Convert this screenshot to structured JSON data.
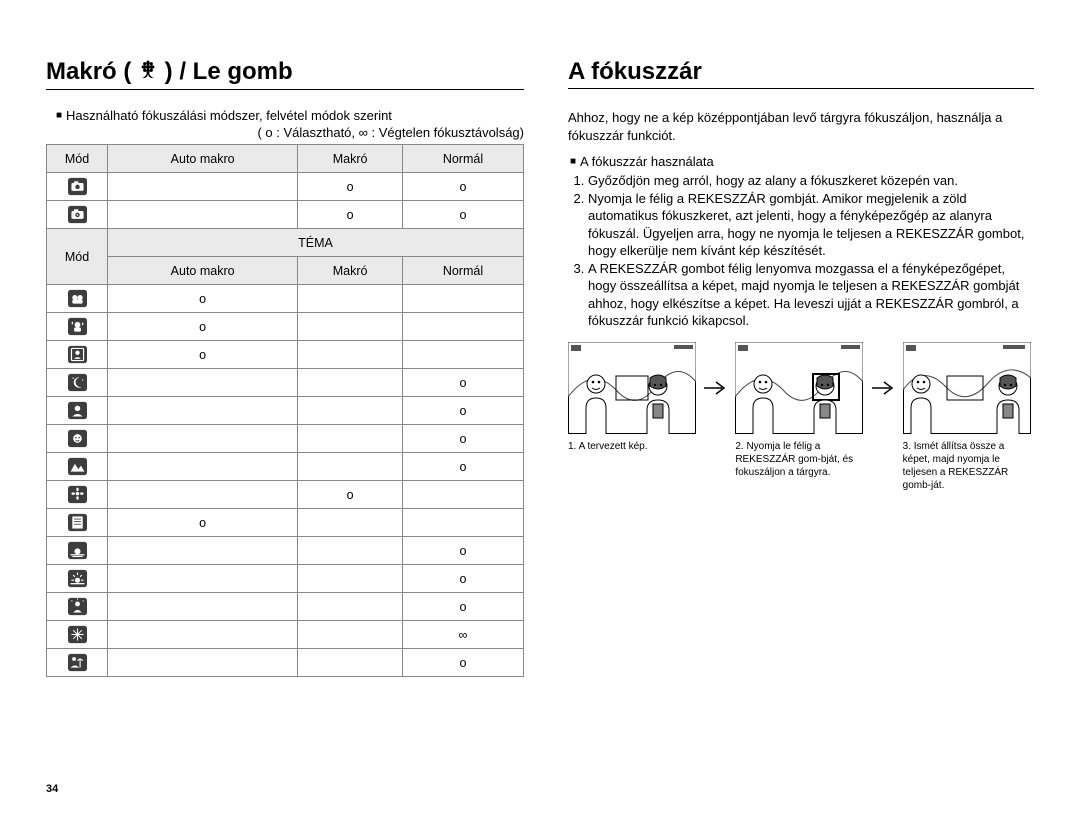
{
  "pageNumber": "34",
  "left": {
    "heading_pre": "Makró ( ",
    "heading_post": " ) / Le gomb",
    "subLine": "Használható fókuszálási módszer, felvétel módok szerint",
    "legend": "( o : Választható, ∞ : Végtelen fókusztávolság)",
    "headers": {
      "mode": "Mód",
      "automacro": "Auto makro",
      "macro": "Makró",
      "normal": "Normál",
      "tema": "TÉMA"
    },
    "marks": {
      "o": "o",
      "inf": "∞"
    },
    "topRows": [
      {
        "icon": "camera-auto",
        "automacro": "",
        "macro": "o",
        "normal": "o"
      },
      {
        "icon": "camera-p",
        "automacro": "",
        "macro": "o",
        "normal": "o"
      }
    ],
    "bottomRows": [
      {
        "icon": "scene-guide",
        "automacro": "o",
        "macro": "",
        "normal": ""
      },
      {
        "icon": "scene-night",
        "automacro": "o",
        "macro": "",
        "normal": ""
      },
      {
        "icon": "scene-portrait2",
        "automacro": "o",
        "macro": "",
        "normal": ""
      },
      {
        "icon": "scene-moonnight",
        "automacro": "",
        "macro": "",
        "normal": "o"
      },
      {
        "icon": "scene-portrait",
        "automacro": "",
        "macro": "",
        "normal": "o"
      },
      {
        "icon": "scene-children",
        "automacro": "",
        "macro": "",
        "normal": "o"
      },
      {
        "icon": "scene-landscape",
        "automacro": "",
        "macro": "",
        "normal": "o"
      },
      {
        "icon": "scene-closeup",
        "automacro": "",
        "macro": "o",
        "normal": ""
      },
      {
        "icon": "scene-text",
        "automacro": "o",
        "macro": "",
        "normal": ""
      },
      {
        "icon": "scene-sunset",
        "automacro": "",
        "macro": "",
        "normal": "o"
      },
      {
        "icon": "scene-dawn",
        "automacro": "",
        "macro": "",
        "normal": "o"
      },
      {
        "icon": "scene-backlight",
        "automacro": "",
        "macro": "",
        "normal": "o"
      },
      {
        "icon": "scene-firework",
        "automacro": "",
        "macro": "",
        "normal": "∞"
      },
      {
        "icon": "scene-beach",
        "automacro": "",
        "macro": "",
        "normal": "o"
      }
    ]
  },
  "right": {
    "heading": "A fókuszzár",
    "intro": "Ahhoz, hogy ne a kép középpontjában levő tárgyra fókuszáljon, használja a fókuszzár funkciót.",
    "sectionHeading": "A fókuszzár használata",
    "steps": [
      "Győződjön meg arról, hogy az alany a fókuszkeret közepén van.",
      "Nyomja le félig a REKESZZÁR gombját. Amikor megjelenik a zöld automatikus fókuszkeret, azt jelenti, hogy a fényképezőgép az alanyra fókuszál. Ügyeljen arra, hogy ne nyomja le teljesen a REKESZZÁR gombot, hogy elkerülje nem kívánt kép készítését.",
      "A REKESZZÁR gombot félig lenyomva mozgassa el a fényképezőgépet, hogy összeállítsa a képet, majd nyomja le teljesen a REKESZZÁR gombját ahhoz, hogy elkészítse a képet. Ha leveszi ujját a REKESZZÁR gombról, a fókuszzár funkció kikapcsol."
    ],
    "captions": [
      "1. A tervezett kép.",
      "2. Nyomja le félig a REKESZZÁR gom-bját, és fokuszáljon a tárgyra.",
      "3. Ismét állítsa össze a képet, majd nyomja le teljesen a REKESZZÁR gomb-ját."
    ]
  },
  "colors": {
    "text": "#000000",
    "tableBorder": "#888888",
    "headerBg": "#eaeaea",
    "iconDark": "#3d3d3d",
    "iconLight": "#ffffff"
  }
}
